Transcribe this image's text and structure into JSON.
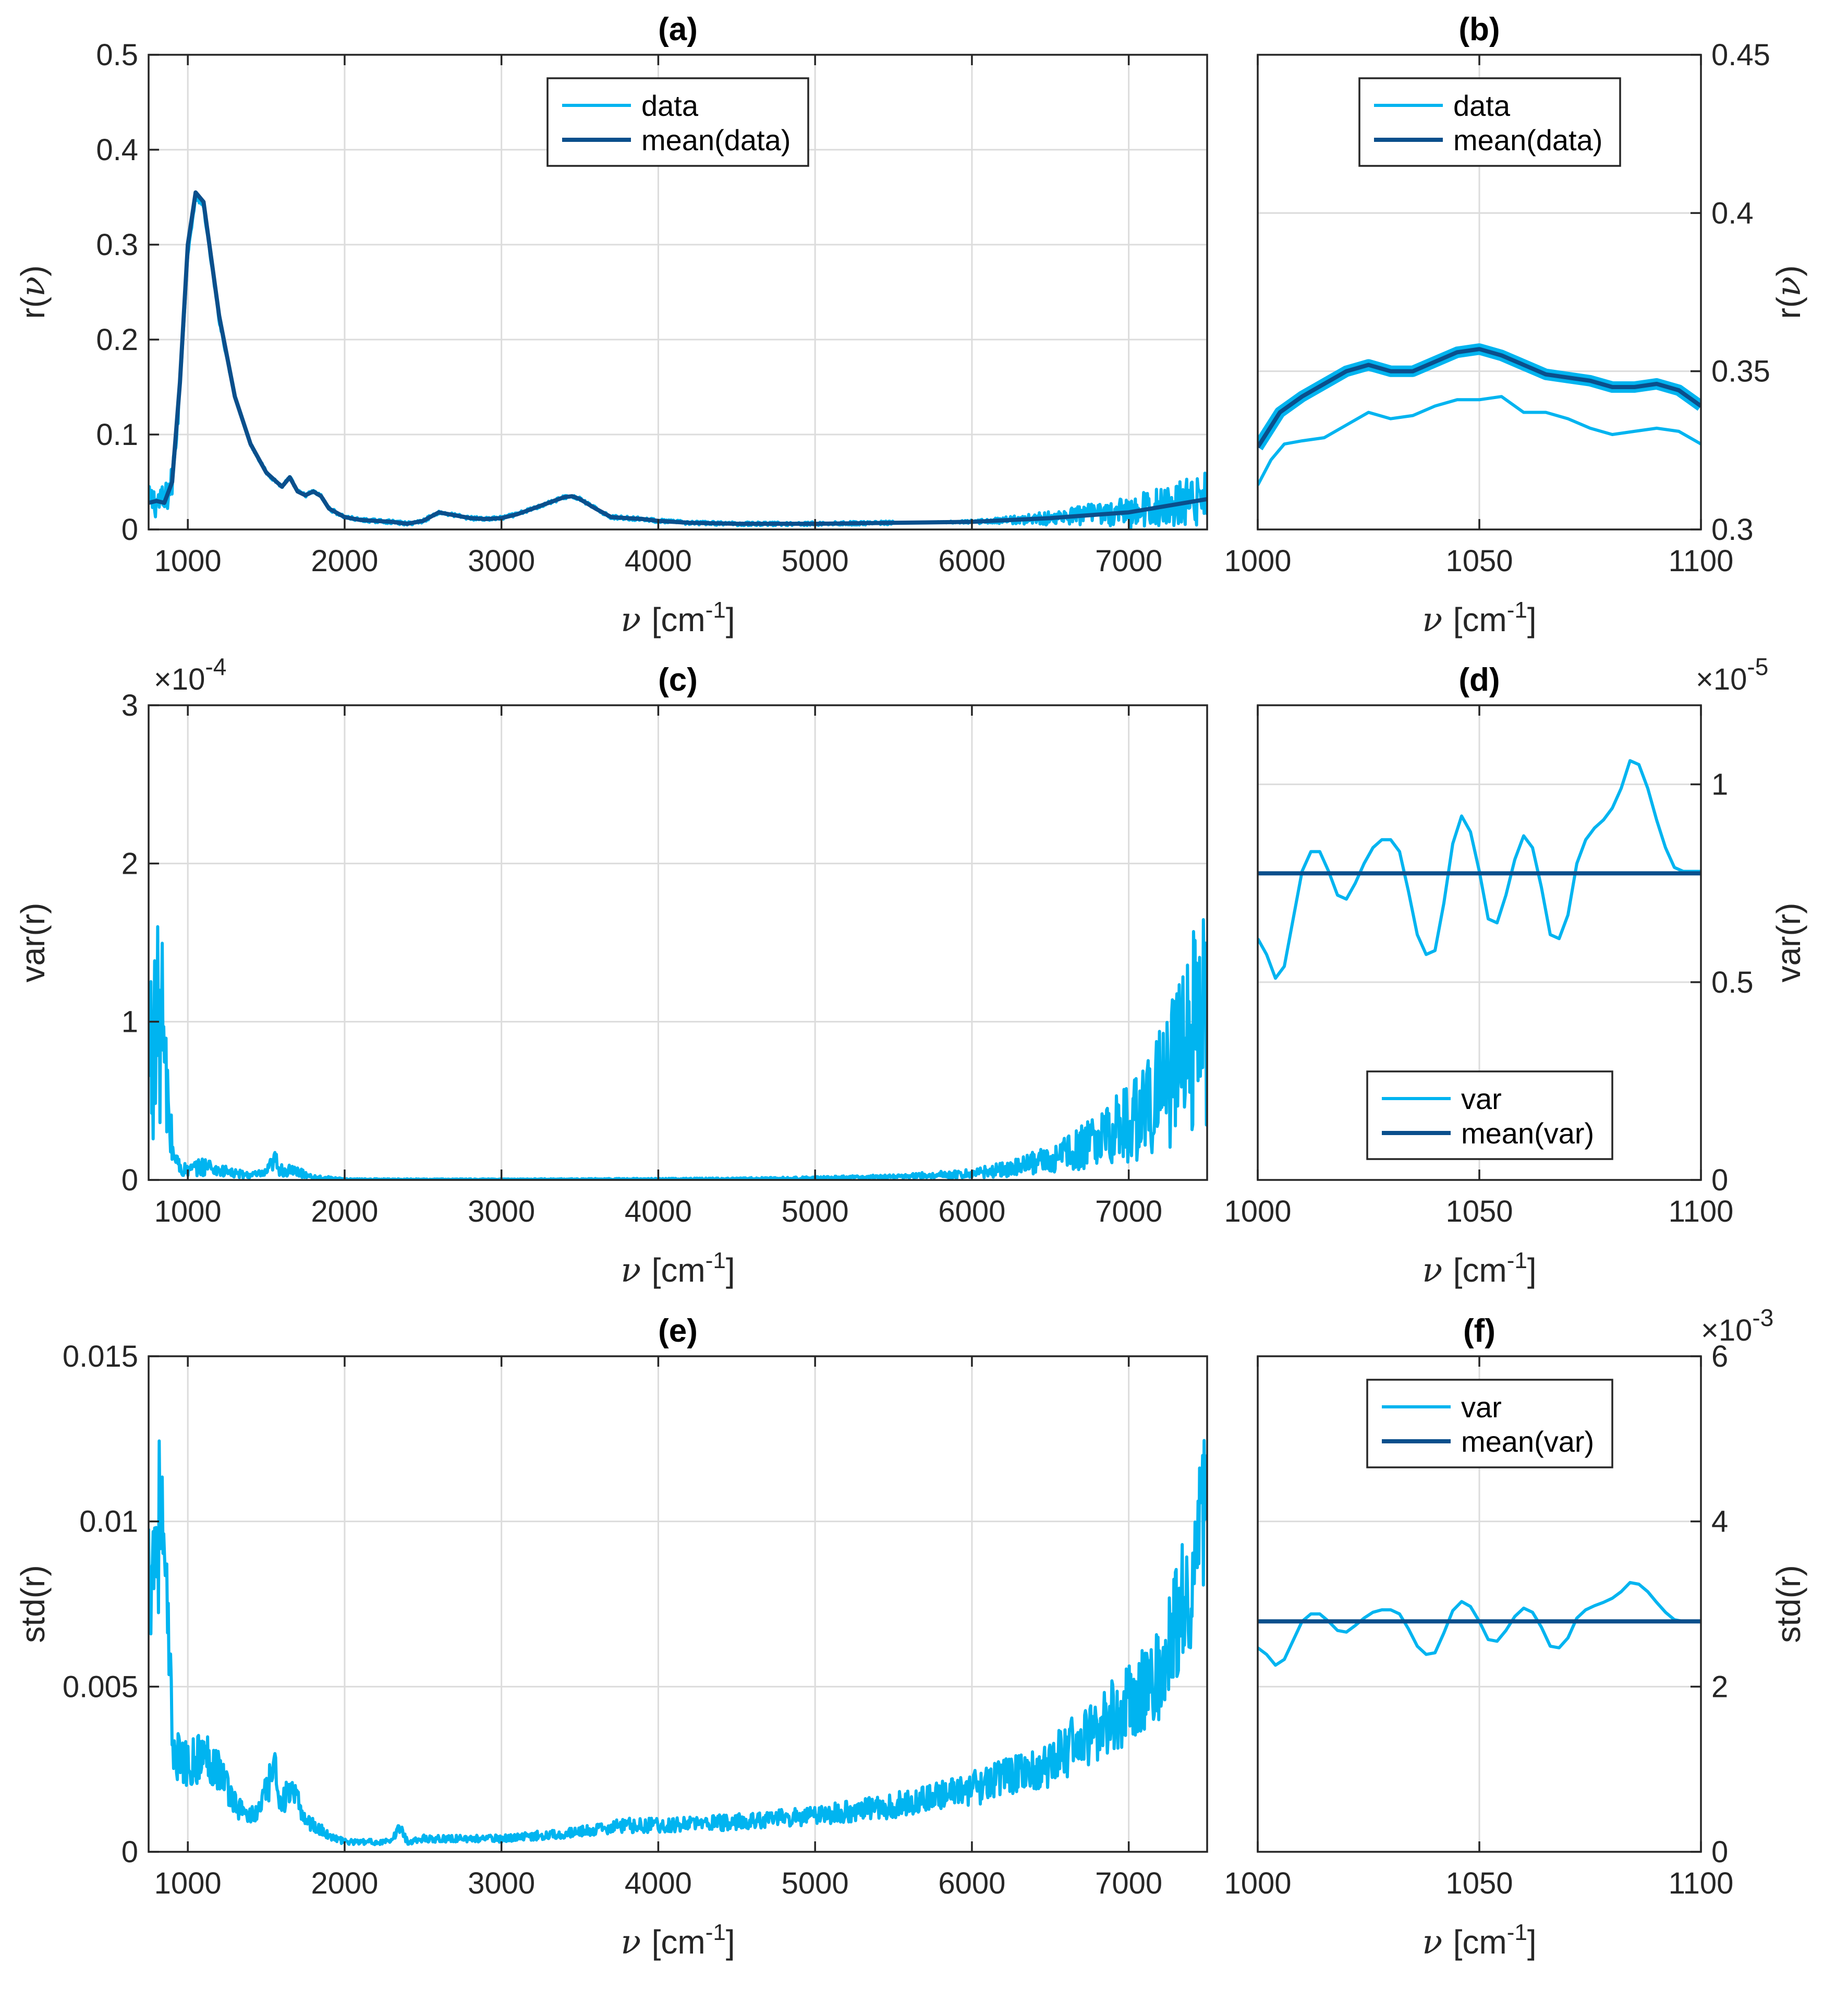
{
  "figure": {
    "colors": {
      "data": "#00b4f0",
      "mean": "#0a4f8c",
      "grid": "#dcdcdc",
      "axis": "#262626"
    },
    "x_unit_symbol": "ν",
    "x_unit_text": "[cm",
    "x_unit_sup": "-1",
    "x_unit_close": "]"
  },
  "chart_data": [
    {
      "id": "a",
      "type": "line",
      "title": "(a)",
      "xlabel": "ν [cm-1]",
      "ylabel": "r(ν)",
      "xlim": [
        750,
        7500
      ],
      "ylim": [
        0,
        0.5
      ],
      "xticks": [
        1000,
        2000,
        3000,
        4000,
        5000,
        6000,
        7000
      ],
      "xticklabels": [
        "1000",
        "2000",
        "3000",
        "4000",
        "5000",
        "6000",
        "7000"
      ],
      "yticks": [
        0,
        0.1,
        0.2,
        0.3,
        0.4,
        0.5
      ],
      "yticklabels": [
        "0",
        "0.1",
        "0.2",
        "0.3",
        "0.4",
        "0.5"
      ],
      "yaxis_side": "left",
      "legend": {
        "position": "top-center",
        "entries": [
          "data",
          "mean(data)"
        ]
      },
      "series": [
        {
          "name": "data",
          "noise": "r_data",
          "x": [
            750,
            800,
            850,
            900,
            950,
            1000,
            1050,
            1100,
            1200,
            1300,
            1400,
            1500,
            1600,
            1650,
            1700,
            1750,
            1800,
            1850,
            1900,
            2000,
            2100,
            2200,
            2300,
            2400,
            2500,
            2600,
            2700,
            2800,
            2900,
            3000,
            3100,
            3200,
            3300,
            3400,
            3450,
            3500,
            3600,
            3700,
            3800,
            3900,
            4000,
            4200,
            4500,
            5000,
            5500,
            6000,
            6500,
            7000,
            7500
          ],
          "y": [
            0.028,
            0.03,
            0.028,
            0.05,
            0.15,
            0.29,
            0.35,
            0.34,
            0.22,
            0.14,
            0.09,
            0.06,
            0.045,
            0.055,
            0.04,
            0.036,
            0.04,
            0.035,
            0.022,
            0.013,
            0.01,
            0.009,
            0.008,
            0.006,
            0.009,
            0.018,
            0.015,
            0.012,
            0.011,
            0.012,
            0.016,
            0.022,
            0.028,
            0.034,
            0.035,
            0.032,
            0.022,
            0.013,
            0.012,
            0.011,
            0.009,
            0.007,
            0.006,
            0.006,
            0.007,
            0.008,
            0.012,
            0.018,
            0.032
          ]
        },
        {
          "name": "mean(data)",
          "x": [
            750,
            800,
            850,
            900,
            950,
            1000,
            1050,
            1100,
            1200,
            1300,
            1400,
            1500,
            1600,
            1650,
            1700,
            1750,
            1800,
            1850,
            1900,
            2000,
            2100,
            2200,
            2300,
            2400,
            2500,
            2600,
            2700,
            2800,
            2900,
            3000,
            3100,
            3200,
            3300,
            3400,
            3450,
            3500,
            3600,
            3700,
            3800,
            3900,
            4000,
            4200,
            4500,
            5000,
            5500,
            6000,
            6500,
            7000,
            7500
          ],
          "y": [
            0.028,
            0.03,
            0.028,
            0.05,
            0.155,
            0.3,
            0.355,
            0.345,
            0.225,
            0.14,
            0.09,
            0.06,
            0.045,
            0.055,
            0.04,
            0.036,
            0.04,
            0.035,
            0.022,
            0.013,
            0.01,
            0.009,
            0.008,
            0.006,
            0.009,
            0.018,
            0.015,
            0.012,
            0.011,
            0.012,
            0.016,
            0.022,
            0.028,
            0.034,
            0.035,
            0.032,
            0.022,
            0.013,
            0.012,
            0.011,
            0.009,
            0.007,
            0.006,
            0.006,
            0.007,
            0.008,
            0.012,
            0.018,
            0.032
          ]
        }
      ]
    },
    {
      "id": "b",
      "type": "line",
      "title": "(b)",
      "xlabel": "ν [cm-1]",
      "ylabel": "r(ν)",
      "xlim": [
        1000,
        1100
      ],
      "ylim": [
        0.3,
        0.45
      ],
      "xticks": [
        1000,
        1050,
        1100
      ],
      "xticklabels": [
        "1000",
        "1050",
        "1100"
      ],
      "yticks": [
        0.3,
        0.35,
        0.4,
        0.45
      ],
      "yticklabels": [
        "0.3",
        "0.35",
        "0.4",
        "0.45"
      ],
      "yaxis_side": "right",
      "legend": {
        "position": "top-center",
        "entries": [
          "data",
          "mean(data)"
        ]
      },
      "series": [
        {
          "name": "data",
          "thick": true,
          "x": [
            1000,
            1005,
            1010,
            1015,
            1020,
            1025,
            1030,
            1035,
            1040,
            1045,
            1050,
            1055,
            1060,
            1065,
            1070,
            1075,
            1080,
            1085,
            1090,
            1095,
            1100
          ],
          "y": [
            0.326,
            0.337,
            0.342,
            0.346,
            0.35,
            0.352,
            0.35,
            0.35,
            0.353,
            0.356,
            0.357,
            0.355,
            0.352,
            0.349,
            0.348,
            0.347,
            0.345,
            0.345,
            0.346,
            0.344,
            0.339
          ]
        },
        {
          "name": "data",
          "x": [
            1000,
            1003,
            1006,
            1010,
            1015,
            1020,
            1025,
            1030,
            1035,
            1040,
            1045,
            1050,
            1055,
            1060,
            1065,
            1070,
            1075,
            1080,
            1085,
            1090,
            1095,
            1100
          ],
          "y": [
            0.314,
            0.322,
            0.327,
            0.328,
            0.329,
            0.333,
            0.337,
            0.335,
            0.336,
            0.339,
            0.341,
            0.341,
            0.342,
            0.337,
            0.337,
            0.335,
            0.332,
            0.33,
            0.331,
            0.332,
            0.331,
            0.327
          ]
        },
        {
          "name": "mean(data)",
          "x": [
            1000,
            1005,
            1010,
            1015,
            1020,
            1025,
            1030,
            1035,
            1040,
            1045,
            1050,
            1055,
            1060,
            1065,
            1070,
            1075,
            1080,
            1085,
            1090,
            1095,
            1100
          ],
          "y": [
            0.326,
            0.337,
            0.342,
            0.346,
            0.35,
            0.352,
            0.35,
            0.35,
            0.353,
            0.356,
            0.357,
            0.355,
            0.352,
            0.349,
            0.348,
            0.347,
            0.345,
            0.345,
            0.346,
            0.344,
            0.339
          ]
        }
      ]
    },
    {
      "id": "c",
      "type": "line",
      "title": "(c)",
      "xlabel": "ν [cm-1]",
      "ylabel": "var(r)",
      "xlim": [
        750,
        7500
      ],
      "ylim": [
        0,
        3
      ],
      "exponent_label": "×10",
      "exponent_sup": "-4",
      "xticks": [
        1000,
        2000,
        3000,
        4000,
        5000,
        6000,
        7000
      ],
      "xticklabels": [
        "1000",
        "2000",
        "3000",
        "4000",
        "5000",
        "6000",
        "7000"
      ],
      "yticks": [
        0,
        1,
        2,
        3
      ],
      "yticklabels": [
        "0",
        "1",
        "2",
        "3"
      ],
      "yaxis_side": "left",
      "series": [
        {
          "name": "var",
          "noise": "var",
          "x": [
            750,
            800,
            830,
            850,
            870,
            900,
            950,
            1000,
            1050,
            1100,
            1150,
            1200,
            1300,
            1400,
            1500,
            1550,
            1600,
            1700,
            1800,
            2000,
            2500,
            3000,
            3500,
            4000,
            4500,
            5000,
            5500,
            6000,
            6300,
            6600,
            6900,
            7100,
            7300,
            7400,
            7500
          ],
          "y": [
            0.8,
            0.9,
            1.1,
            0.7,
            0.5,
            0.2,
            0.07,
            0.06,
            0.07,
            0.09,
            0.08,
            0.06,
            0.04,
            0.03,
            0.04,
            0.12,
            0.06,
            0.05,
            0.02,
            0.005,
            0.004,
            0.004,
            0.005,
            0.006,
            0.008,
            0.012,
            0.02,
            0.04,
            0.08,
            0.16,
            0.3,
            0.45,
            0.7,
            0.9,
            1.1
          ]
        }
      ]
    },
    {
      "id": "d",
      "type": "line",
      "title": "(d)",
      "xlabel": "ν [cm-1]",
      "ylabel": "var(r)",
      "xlim": [
        1000,
        1100
      ],
      "ylim": [
        0,
        1.2
      ],
      "exponent_label": "×10",
      "exponent_sup": "-5",
      "xticks": [
        1000,
        1050,
        1100
      ],
      "xticklabels": [
        "1000",
        "1050",
        "1100"
      ],
      "yticks": [
        0,
        0.5,
        1
      ],
      "yticklabels": [
        "0",
        "0.5",
        "1"
      ],
      "yaxis_side": "right",
      "legend": {
        "position": "bottom-center",
        "entries": [
          "var",
          "mean(var)"
        ]
      },
      "series": [
        {
          "name": "var",
          "x": [
            1000,
            1002,
            1004,
            1006,
            1008,
            1010,
            1012,
            1014,
            1016,
            1018,
            1020,
            1022,
            1024,
            1026,
            1028,
            1030,
            1032,
            1034,
            1036,
            1038,
            1040,
            1042,
            1044,
            1046,
            1048,
            1050,
            1052,
            1054,
            1056,
            1058,
            1060,
            1062,
            1064,
            1066,
            1068,
            1070,
            1072,
            1074,
            1076,
            1078,
            1080,
            1082,
            1084,
            1086,
            1088,
            1090,
            1092,
            1094,
            1096,
            1098,
            1100
          ],
          "y": [
            0.61,
            0.57,
            0.51,
            0.54,
            0.66,
            0.78,
            0.83,
            0.83,
            0.78,
            0.72,
            0.71,
            0.75,
            0.8,
            0.84,
            0.86,
            0.86,
            0.83,
            0.73,
            0.62,
            0.57,
            0.58,
            0.7,
            0.85,
            0.92,
            0.88,
            0.78,
            0.66,
            0.65,
            0.72,
            0.81,
            0.87,
            0.84,
            0.74,
            0.62,
            0.61,
            0.67,
            0.8,
            0.86,
            0.89,
            0.91,
            0.94,
            0.99,
            1.06,
            1.05,
            0.99,
            0.91,
            0.84,
            0.79,
            0.78,
            0.78,
            0.78
          ]
        },
        {
          "name": "mean(var)",
          "x": [
            1000,
            1100
          ],
          "y": [
            0.775,
            0.775
          ]
        }
      ]
    },
    {
      "id": "e",
      "type": "line",
      "title": "(e)",
      "xlabel": "ν [cm-1]",
      "ylabel": "std(r)",
      "xlim": [
        750,
        7500
      ],
      "ylim": [
        0,
        0.015
      ],
      "xticks": [
        1000,
        2000,
        3000,
        4000,
        5000,
        6000,
        7000
      ],
      "xticklabels": [
        "1000",
        "2000",
        "3000",
        "4000",
        "5000",
        "6000",
        "7000"
      ],
      "yticks": [
        0,
        0.005,
        0.01,
        0.015
      ],
      "yticklabels": [
        "0",
        "0.005",
        "0.01",
        "0.015"
      ],
      "yaxis_side": "left",
      "series": [
        {
          "name": "std",
          "noise": "std",
          "x": [
            750,
            800,
            830,
            850,
            880,
            900,
            950,
            1000,
            1050,
            1100,
            1150,
            1200,
            1250,
            1300,
            1350,
            1400,
            1450,
            1500,
            1550,
            1600,
            1650,
            1700,
            1750,
            1800,
            1900,
            2000,
            2200,
            2300,
            2350,
            2400,
            2500,
            3000,
            3500,
            3800,
            4000,
            4500,
            5000,
            5500,
            6000,
            6500,
            7000,
            7200,
            7400,
            7500
          ],
          "y": [
            0.0085,
            0.0095,
            0.0105,
            0.008,
            0.006,
            0.0035,
            0.0027,
            0.0026,
            0.0028,
            0.0029,
            0.0028,
            0.0025,
            0.002,
            0.0015,
            0.0012,
            0.0011,
            0.0012,
            0.0018,
            0.0025,
            0.0015,
            0.0018,
            0.0015,
            0.001,
            0.0008,
            0.0005,
            0.0003,
            0.0003,
            0.0003,
            0.0008,
            0.0003,
            0.0004,
            0.0004,
            0.0006,
            0.0008,
            0.0008,
            0.0009,
            0.0011,
            0.0014,
            0.0019,
            0.0027,
            0.0045,
            0.0055,
            0.0085,
            0.0105
          ]
        }
      ]
    },
    {
      "id": "f",
      "type": "line",
      "title": "(f)",
      "xlabel": "ν [cm-1]",
      "ylabel": "std(r)",
      "xlim": [
        1000,
        1100
      ],
      "ylim": [
        0,
        6
      ],
      "exponent_label": "×10",
      "exponent_sup": "-3",
      "xticks": [
        1000,
        1050,
        1100
      ],
      "xticklabels": [
        "1000",
        "1050",
        "1100"
      ],
      "yticks": [
        0,
        2,
        4,
        6
      ],
      "yticklabels": [
        "0",
        "2",
        "4",
        "6"
      ],
      "yaxis_side": "right",
      "legend": {
        "position": "top-center",
        "entries": [
          "var",
          "mean(var)"
        ]
      },
      "series": [
        {
          "name": "var",
          "x": [
            1000,
            1002,
            1004,
            1006,
            1008,
            1010,
            1012,
            1014,
            1016,
            1018,
            1020,
            1022,
            1024,
            1026,
            1028,
            1030,
            1032,
            1034,
            1036,
            1038,
            1040,
            1042,
            1044,
            1046,
            1048,
            1050,
            1052,
            1054,
            1056,
            1058,
            1060,
            1062,
            1064,
            1066,
            1068,
            1070,
            1072,
            1074,
            1076,
            1078,
            1080,
            1082,
            1084,
            1086,
            1088,
            1090,
            1092,
            1094,
            1096,
            1098,
            1100
          ],
          "y": [
            2.47,
            2.39,
            2.26,
            2.33,
            2.56,
            2.79,
            2.88,
            2.88,
            2.79,
            2.68,
            2.66,
            2.74,
            2.83,
            2.9,
            2.93,
            2.93,
            2.88,
            2.7,
            2.49,
            2.39,
            2.41,
            2.65,
            2.92,
            3.03,
            2.97,
            2.79,
            2.57,
            2.55,
            2.68,
            2.85,
            2.95,
            2.9,
            2.72,
            2.49,
            2.47,
            2.59,
            2.83,
            2.93,
            2.98,
            3.02,
            3.07,
            3.15,
            3.26,
            3.24,
            3.15,
            3.02,
            2.9,
            2.81,
            2.79,
            2.79,
            2.79
          ]
        },
        {
          "name": "mean(var)",
          "x": [
            1000,
            1100
          ],
          "y": [
            2.79,
            2.79
          ]
        }
      ]
    }
  ]
}
